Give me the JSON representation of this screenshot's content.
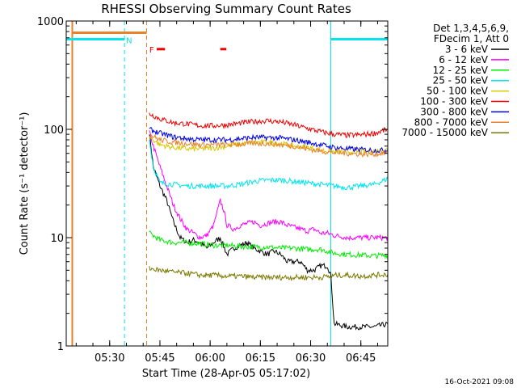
{
  "chart_data": {
    "type": "line",
    "title": "RHESSI Observing Summary Count Rates",
    "xlabel": "Start Time (28-Apr-05 05:17:02)",
    "ylabel": "Count Rate (s⁻¹ detector⁻¹)",
    "y_scale": "log",
    "ylim": [
      1,
      1000
    ],
    "xlim_minutes": [
      0,
      96
    ],
    "y_ticks": [
      "1",
      "10",
      "100",
      "1000"
    ],
    "x_ticks": [
      {
        "label": "05:30",
        "min": 12.97
      },
      {
        "label": "05:45",
        "min": 27.97
      },
      {
        "label": "06:00",
        "min": 42.97
      },
      {
        "label": "06:15",
        "min": 57.97
      },
      {
        "label": "06:30",
        "min": 72.97
      },
      {
        "label": "06:45",
        "min": 87.97
      }
    ],
    "legend_header": [
      "Det 1,3,4,5,6,9,",
      "FDecim 1, Att 0"
    ],
    "legend_position": "right",
    "timestamp": "16-Oct-2021 09:08",
    "flag_labels": {
      "N": "N",
      "F": "F"
    },
    "colors": {
      "frame": "#000000",
      "night_dash": "#00e5ee",
      "saa_dash": "#e8822a",
      "flag_bar_cyan": "#00e5ee",
      "flag_bar_orange": "#e8822a",
      "flare_marker": "#ee0000"
    },
    "flags": {
      "saa_bar": [
        {
          "start": 1.8,
          "end": 24.0,
          "y": 780
        }
      ],
      "night_bar": [
        {
          "start": 0.0,
          "end": 17.4,
          "y": 680
        },
        {
          "start": 79.0,
          "end": 96.0,
          "y": 680
        }
      ],
      "flare_marker": [
        {
          "start": 27.0,
          "end": 29.5,
          "y": 550
        },
        {
          "start": 46.0,
          "end": 47.8,
          "y": 550
        }
      ],
      "night_lines": [
        17.4,
        79.0,
        96.0
      ],
      "saa_lines": [
        24.0
      ]
    },
    "series": [
      {
        "name": "3 - 6 keV",
        "color": "#000000",
        "points": [
          [
            24.8,
            95
          ],
          [
            26,
            45
          ],
          [
            28,
            30
          ],
          [
            30,
            22
          ],
          [
            32,
            14
          ],
          [
            34,
            10
          ],
          [
            36,
            9
          ],
          [
            38,
            9.5
          ],
          [
            40,
            9
          ],
          [
            42,
            8
          ],
          [
            44,
            9
          ],
          [
            46,
            10
          ],
          [
            48,
            7
          ],
          [
            50,
            8
          ],
          [
            52,
            8.5
          ],
          [
            54,
            9
          ],
          [
            56,
            8
          ],
          [
            58,
            7.5
          ],
          [
            60,
            7
          ],
          [
            62,
            7.5
          ],
          [
            64,
            7
          ],
          [
            66,
            6
          ],
          [
            68,
            6
          ],
          [
            70,
            6
          ],
          [
            72,
            5
          ],
          [
            74,
            5
          ],
          [
            76,
            5.5
          ],
          [
            78,
            5.5
          ],
          [
            79,
            4.5
          ],
          [
            80,
            1.6
          ],
          [
            84,
            1.5
          ],
          [
            88,
            1.5
          ],
          [
            92,
            1.5
          ],
          [
            96,
            1.6
          ]
        ]
      },
      {
        "name": "6 - 12 keV",
        "color": "#ff00ff",
        "points": [
          [
            24.8,
            95
          ],
          [
            26,
            70
          ],
          [
            28,
            45
          ],
          [
            30,
            30
          ],
          [
            32,
            20
          ],
          [
            34,
            15
          ],
          [
            36,
            12
          ],
          [
            38,
            11
          ],
          [
            40,
            10
          ],
          [
            42,
            10.5
          ],
          [
            44,
            13
          ],
          [
            46,
            22
          ],
          [
            47,
            18
          ],
          [
            48,
            13
          ],
          [
            50,
            12
          ],
          [
            52,
            13
          ],
          [
            54,
            13.5
          ],
          [
            56,
            14
          ],
          [
            58,
            13
          ],
          [
            60,
            13.5
          ],
          [
            62,
            14
          ],
          [
            64,
            14
          ],
          [
            66,
            13
          ],
          [
            68,
            12.5
          ],
          [
            70,
            12
          ],
          [
            72,
            11.5
          ],
          [
            74,
            12
          ],
          [
            76,
            11
          ],
          [
            78,
            11
          ],
          [
            80,
            10.5
          ],
          [
            84,
            10
          ],
          [
            88,
            10
          ],
          [
            92,
            10
          ],
          [
            96,
            10
          ]
        ]
      },
      {
        "name": "12 - 25 keV",
        "color": "#00ee00",
        "points": [
          [
            24.8,
            11
          ],
          [
            28,
            9.5
          ],
          [
            32,
            9
          ],
          [
            36,
            9
          ],
          [
            40,
            8.8
          ],
          [
            44,
            8.5
          ],
          [
            48,
            8.5
          ],
          [
            52,
            8.3
          ],
          [
            56,
            8.2
          ],
          [
            60,
            8.2
          ],
          [
            64,
            8
          ],
          [
            68,
            8
          ],
          [
            72,
            7.8
          ],
          [
            76,
            7.8
          ],
          [
            80,
            7.2
          ],
          [
            84,
            7.0
          ],
          [
            88,
            6.9
          ],
          [
            92,
            6.8
          ],
          [
            96,
            6.9
          ]
        ]
      },
      {
        "name": "25 - 50 keV",
        "color": "#00e5ee",
        "points": [
          [
            24.8,
            80
          ],
          [
            26,
            45
          ],
          [
            28,
            32
          ],
          [
            32,
            31
          ],
          [
            36,
            30
          ],
          [
            40,
            30
          ],
          [
            44,
            30
          ],
          [
            48,
            30
          ],
          [
            52,
            31
          ],
          [
            56,
            33
          ],
          [
            60,
            34
          ],
          [
            64,
            34
          ],
          [
            68,
            33
          ],
          [
            72,
            32
          ],
          [
            76,
            31
          ],
          [
            80,
            30
          ],
          [
            84,
            29
          ],
          [
            88,
            30
          ],
          [
            92,
            31
          ],
          [
            96,
            35
          ]
        ]
      },
      {
        "name": "50 - 100 keV",
        "color": "#d8c800",
        "points": [
          [
            24.8,
            85
          ],
          [
            28,
            72
          ],
          [
            32,
            68
          ],
          [
            36,
            66
          ],
          [
            40,
            66
          ],
          [
            44,
            67
          ],
          [
            48,
            70
          ],
          [
            52,
            73
          ],
          [
            56,
            76
          ],
          [
            60,
            76
          ],
          [
            64,
            74
          ],
          [
            68,
            70
          ],
          [
            72,
            68
          ],
          [
            76,
            64
          ],
          [
            80,
            62
          ],
          [
            84,
            62
          ],
          [
            88,
            62
          ],
          [
            92,
            63
          ],
          [
            96,
            65
          ]
        ]
      },
      {
        "name": "100 - 300 keV",
        "color": "#ee0000",
        "points": [
          [
            24.8,
            140
          ],
          [
            28,
            125
          ],
          [
            32,
            115
          ],
          [
            36,
            112
          ],
          [
            40,
            108
          ],
          [
            44,
            108
          ],
          [
            48,
            110
          ],
          [
            52,
            114
          ],
          [
            56,
            118
          ],
          [
            60,
            120
          ],
          [
            64,
            117
          ],
          [
            68,
            110
          ],
          [
            72,
            102
          ],
          [
            76,
            95
          ],
          [
            80,
            90
          ],
          [
            84,
            88
          ],
          [
            88,
            89
          ],
          [
            92,
            92
          ],
          [
            96,
            100
          ]
        ]
      },
      {
        "name": "300 - 800 keV",
        "color": "#0000ee",
        "points": [
          [
            24.8,
            100
          ],
          [
            28,
            92
          ],
          [
            32,
            85
          ],
          [
            36,
            82
          ],
          [
            40,
            80
          ],
          [
            44,
            80
          ],
          [
            48,
            80
          ],
          [
            52,
            82
          ],
          [
            56,
            84
          ],
          [
            60,
            84
          ],
          [
            64,
            83
          ],
          [
            68,
            80
          ],
          [
            72,
            76
          ],
          [
            76,
            72
          ],
          [
            80,
            68
          ],
          [
            84,
            66
          ],
          [
            88,
            65
          ],
          [
            92,
            64
          ],
          [
            96,
            64
          ]
        ]
      },
      {
        "name": "800 - 7000 keV",
        "color": "#e8822a",
        "points": [
          [
            24.8,
            90
          ],
          [
            28,
            80
          ],
          [
            32,
            76
          ],
          [
            36,
            74
          ],
          [
            40,
            72
          ],
          [
            44,
            72
          ],
          [
            48,
            72
          ],
          [
            52,
            73
          ],
          [
            56,
            74
          ],
          [
            60,
            74
          ],
          [
            64,
            72
          ],
          [
            68,
            70
          ],
          [
            72,
            66
          ],
          [
            76,
            63
          ],
          [
            80,
            61
          ],
          [
            84,
            60
          ],
          [
            88,
            59
          ],
          [
            92,
            59
          ],
          [
            96,
            61
          ]
        ]
      },
      {
        "name": "7000 - 15000 keV",
        "color": "#7a7a00",
        "points": [
          [
            24.8,
            5.2
          ],
          [
            28,
            5
          ],
          [
            32,
            4.8
          ],
          [
            36,
            4.7
          ],
          [
            40,
            4.5
          ],
          [
            44,
            4.5
          ],
          [
            48,
            4.4
          ],
          [
            52,
            4.4
          ],
          [
            56,
            4.3
          ],
          [
            60,
            4.3
          ],
          [
            64,
            4.3
          ],
          [
            68,
            4.3
          ],
          [
            72,
            4.3
          ],
          [
            76,
            4.3
          ],
          [
            78,
            4.4
          ],
          [
            79,
            4.3
          ],
          [
            80,
            4.5
          ],
          [
            84,
            4.5
          ],
          [
            88,
            4.4
          ],
          [
            92,
            4.5
          ],
          [
            96,
            4.6
          ]
        ]
      }
    ]
  }
}
